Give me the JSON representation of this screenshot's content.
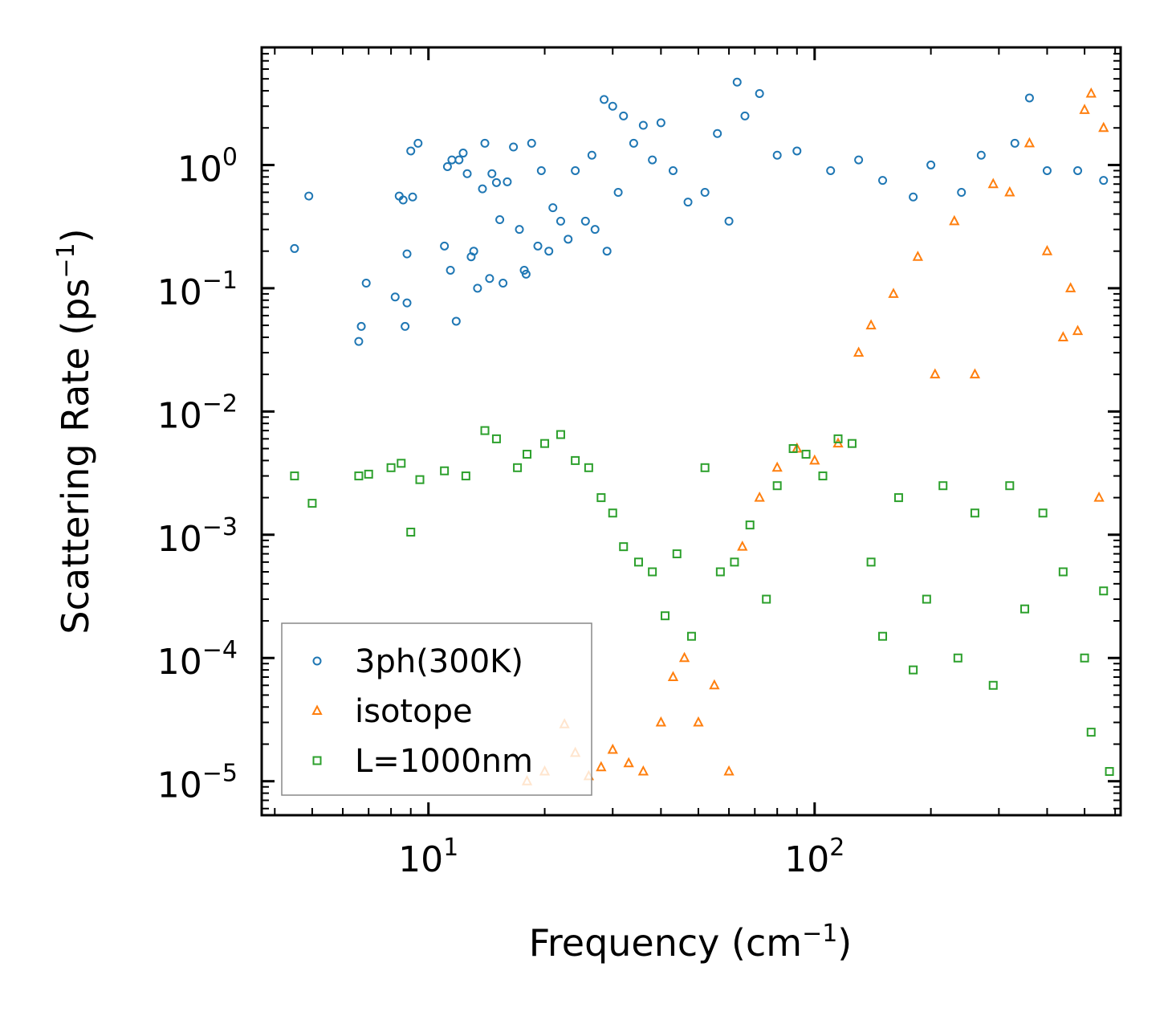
{
  "chart_data": {
    "type": "scatter",
    "xscale": "log",
    "yscale": "log",
    "xlim": [
      3.7,
      620
    ],
    "ylim": [
      5.3e-06,
      9.0
    ],
    "xlabel": "Frequency (cm",
    "xlabel_unit_exp": "−1",
    "xlabel_close": ")",
    "ylabel": "Scattering Rate (ps",
    "ylabel_unit_exp": "−1",
    "ylabel_close": ")",
    "x_ticks": [
      {
        "value": 10,
        "base": "10",
        "exp": "1"
      },
      {
        "value": 100,
        "base": "10",
        "exp": "2"
      }
    ],
    "y_ticks": [
      {
        "value": 1,
        "base": "10",
        "exp": "0"
      },
      {
        "value": 0.1,
        "base": "10",
        "exp": "−1"
      },
      {
        "value": 0.01,
        "base": "10",
        "exp": "−2"
      },
      {
        "value": 0.001,
        "base": "10",
        "exp": "−3"
      },
      {
        "value": 0.0001,
        "base": "10",
        "exp": "−4"
      },
      {
        "value": 1e-05,
        "base": "10",
        "exp": "−5"
      }
    ],
    "legend_position": "lower-left",
    "series": [
      {
        "name": "3ph(300K)",
        "marker": "circle",
        "color": "#1f77b4",
        "points": [
          [
            4.5,
            0.21
          ],
          [
            4.9,
            0.56
          ],
          [
            6.6,
            0.037
          ],
          [
            6.7,
            0.049
          ],
          [
            6.9,
            0.11
          ],
          [
            8.2,
            0.085
          ],
          [
            8.4,
            0.56
          ],
          [
            8.6,
            0.52
          ],
          [
            8.8,
            0.076
          ],
          [
            8.8,
            0.19
          ],
          [
            8.7,
            0.049
          ],
          [
            9.0,
            1.3
          ],
          [
            9.1,
            0.55
          ],
          [
            9.4,
            1.5
          ],
          [
            11.0,
            0.22
          ],
          [
            11.2,
            0.97
          ],
          [
            11.4,
            0.14
          ],
          [
            11.5,
            1.1
          ],
          [
            11.8,
            0.054
          ],
          [
            12.0,
            1.1
          ],
          [
            12.3,
            1.25
          ],
          [
            12.6,
            0.85
          ],
          [
            12.9,
            0.18
          ],
          [
            13.1,
            0.2
          ],
          [
            13.4,
            0.1
          ],
          [
            13.8,
            0.64
          ],
          [
            14.0,
            1.5
          ],
          [
            14.4,
            0.12
          ],
          [
            14.6,
            0.85
          ],
          [
            15.0,
            0.72
          ],
          [
            15.3,
            0.36
          ],
          [
            15.6,
            0.11
          ],
          [
            16.0,
            0.73
          ],
          [
            16.6,
            1.4
          ],
          [
            17.2,
            0.3
          ],
          [
            17.7,
            0.14
          ],
          [
            17.9,
            0.13
          ],
          [
            18.5,
            1.5
          ],
          [
            19.2,
            0.22
          ],
          [
            19.6,
            0.9
          ],
          [
            20.5,
            0.2
          ],
          [
            21.0,
            0.45
          ],
          [
            22.0,
            0.35
          ],
          [
            23.0,
            0.25
          ],
          [
            24.0,
            0.9
          ],
          [
            25.5,
            0.35
          ],
          [
            26.5,
            1.2
          ],
          [
            27.0,
            0.3
          ],
          [
            28.5,
            3.4
          ],
          [
            29.0,
            0.2
          ],
          [
            30.0,
            3.0
          ],
          [
            31.0,
            0.6
          ],
          [
            32.0,
            2.5
          ],
          [
            34.0,
            1.5
          ],
          [
            36.0,
            2.1
          ],
          [
            38.0,
            1.1
          ],
          [
            40.0,
            2.2
          ],
          [
            43.0,
            0.9
          ],
          [
            47.0,
            0.5
          ],
          [
            52.0,
            0.6
          ],
          [
            56.0,
            1.8
          ],
          [
            60.0,
            0.35
          ],
          [
            63.0,
            4.7
          ],
          [
            66.0,
            2.5
          ],
          [
            72.0,
            3.8
          ],
          [
            80.0,
            1.2
          ],
          [
            90.0,
            1.3
          ],
          [
            110.0,
            0.9
          ],
          [
            130.0,
            1.1
          ],
          [
            150.0,
            0.75
          ],
          [
            180.0,
            0.55
          ],
          [
            200.0,
            1.0
          ],
          [
            240.0,
            0.6
          ],
          [
            270.0,
            1.2
          ],
          [
            330.0,
            1.5
          ],
          [
            360.0,
            3.5
          ],
          [
            400.0,
            0.9
          ],
          [
            480.0,
            0.9
          ],
          [
            560.0,
            0.75
          ]
        ]
      },
      {
        "name": "isotope",
        "marker": "triangle",
        "color": "#ff7f0e",
        "points": [
          [
            18.0,
            1e-05
          ],
          [
            20.0,
            1.2e-05
          ],
          [
            22.5,
            2.9e-05
          ],
          [
            24.0,
            1.7e-05
          ],
          [
            26.0,
            1.1e-05
          ],
          [
            28.0,
            1.3e-05
          ],
          [
            30.0,
            1.8e-05
          ],
          [
            33.0,
            1.4e-05
          ],
          [
            36.0,
            1.2e-05
          ],
          [
            40.0,
            3e-05
          ],
          [
            43.0,
            7e-05
          ],
          [
            46.0,
            0.0001
          ],
          [
            50.0,
            3e-05
          ],
          [
            55.0,
            6e-05
          ],
          [
            60.0,
            1.2e-05
          ],
          [
            65.0,
            0.0008
          ],
          [
            72.0,
            0.002
          ],
          [
            80.0,
            0.0035
          ],
          [
            90.0,
            0.005
          ],
          [
            100.0,
            0.004
          ],
          [
            115.0,
            0.0055
          ],
          [
            130.0,
            0.03
          ],
          [
            140.0,
            0.05
          ],
          [
            160.0,
            0.09
          ],
          [
            185.0,
            0.18
          ],
          [
            205.0,
            0.02
          ],
          [
            230.0,
            0.35
          ],
          [
            260.0,
            0.02
          ],
          [
            290.0,
            0.7
          ],
          [
            320.0,
            0.6
          ],
          [
            360.0,
            1.5
          ],
          [
            400.0,
            0.2
          ],
          [
            440.0,
            0.04
          ],
          [
            500.0,
            2.8
          ],
          [
            520.0,
            3.8
          ],
          [
            560.0,
            2.0
          ],
          [
            545.0,
            0.002
          ],
          [
            480.0,
            0.045
          ],
          [
            460.0,
            0.1
          ]
        ]
      },
      {
        "name": "L=1000nm",
        "marker": "square",
        "color": "#2ca02c",
        "points": [
          [
            4.5,
            0.003
          ],
          [
            5.0,
            0.0018
          ],
          [
            6.6,
            0.003
          ],
          [
            7.0,
            0.0031
          ],
          [
            8.0,
            0.0035
          ],
          [
            8.5,
            0.0038
          ],
          [
            9.0,
            0.00105
          ],
          [
            9.5,
            0.0028
          ],
          [
            11.0,
            0.0033
          ],
          [
            12.5,
            0.003
          ],
          [
            14.0,
            0.007
          ],
          [
            15.0,
            0.006
          ],
          [
            17.0,
            0.0035
          ],
          [
            18.0,
            0.0045
          ],
          [
            20.0,
            0.0055
          ],
          [
            22.0,
            0.0065
          ],
          [
            24.0,
            0.004
          ],
          [
            26.0,
            0.0035
          ],
          [
            28.0,
            0.002
          ],
          [
            30.0,
            0.0015
          ],
          [
            32.0,
            0.0008
          ],
          [
            35.0,
            0.0006
          ],
          [
            38.0,
            0.0005
          ],
          [
            41.0,
            0.00022
          ],
          [
            44.0,
            0.0007
          ],
          [
            48.0,
            0.00015
          ],
          [
            52.0,
            0.0035
          ],
          [
            57.0,
            0.0005
          ],
          [
            62.0,
            0.0006
          ],
          [
            68.0,
            0.0012
          ],
          [
            75.0,
            0.0003
          ],
          [
            80.0,
            0.0025
          ],
          [
            88.0,
            0.005
          ],
          [
            95.0,
            0.0045
          ],
          [
            105.0,
            0.003
          ],
          [
            115.0,
            0.006
          ],
          [
            125.0,
            0.0055
          ],
          [
            140.0,
            0.0006
          ],
          [
            150.0,
            0.00015
          ],
          [
            165.0,
            0.002
          ],
          [
            180.0,
            8e-05
          ],
          [
            195.0,
            0.0003
          ],
          [
            215.0,
            0.0025
          ],
          [
            235.0,
            0.0001
          ],
          [
            260.0,
            0.0015
          ],
          [
            290.0,
            6e-05
          ],
          [
            320.0,
            0.0025
          ],
          [
            350.0,
            0.00025
          ],
          [
            390.0,
            0.0015
          ],
          [
            440.0,
            0.0005
          ],
          [
            500.0,
            0.0001
          ],
          [
            520.0,
            2.5e-05
          ],
          [
            560.0,
            0.00035
          ],
          [
            580.0,
            1.2e-05
          ]
        ]
      }
    ]
  }
}
